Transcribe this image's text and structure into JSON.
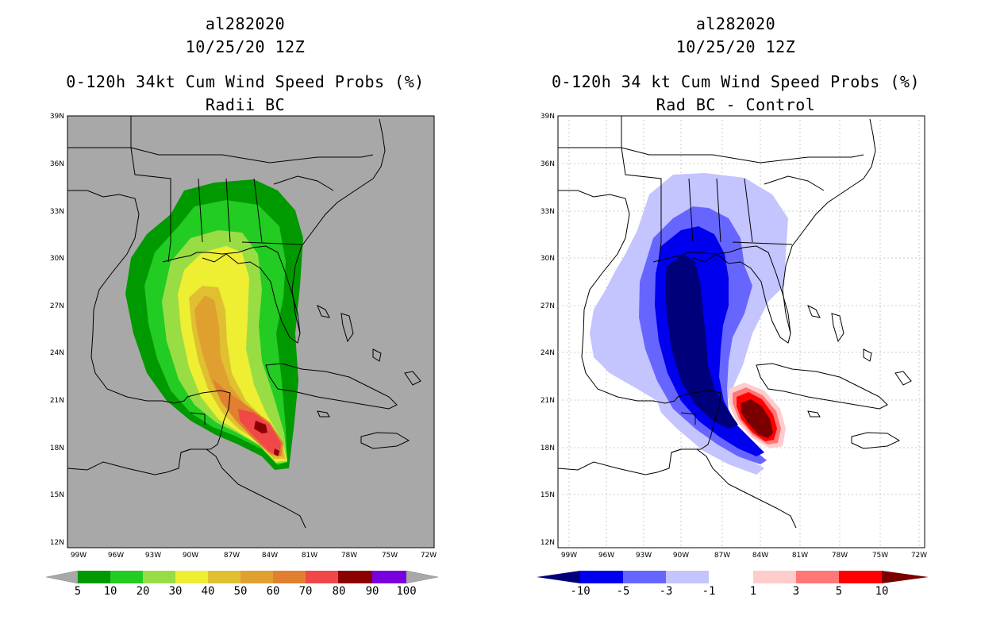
{
  "panels": [
    {
      "storm_id": "al282020",
      "datetime": "10/25/20 12Z",
      "product": "0-120h 34kt Cum Wind Speed Probs (%)",
      "subtitle": "Radii BC",
      "background": "#a8a8a8",
      "colorbar": {
        "colors": [
          "#009900",
          "#22cc22",
          "#99dd44",
          "#eeee33",
          "#e0c030",
          "#e0a030",
          "#e08030",
          "#f04848",
          "#8b0000",
          "#7700dd"
        ],
        "labels": [
          "5",
          "10",
          "20",
          "30",
          "40",
          "50",
          "60",
          "70",
          "80",
          "90",
          "100"
        ]
      }
    },
    {
      "storm_id": "al282020",
      "datetime": "10/25/20 12Z",
      "product": "0-120h 34 kt Cum Wind Speed Probs (%)",
      "subtitle": "Rad BC - Control",
      "background": "#ffffff",
      "colorbar": {
        "colors": [
          "#0000ee",
          "#6666ff",
          "#c4c4ff",
          "#ffffff",
          "#ffcccc",
          "#ff7777",
          "#ff0000"
        ],
        "end_colors": [
          "#00007a",
          "#7a0000"
        ],
        "labels": [
          "-10",
          "-5",
          "-3",
          "-1",
          "1",
          "3",
          "5",
          "10"
        ]
      }
    }
  ],
  "axes": {
    "lat_labels": [
      "39N",
      "36N",
      "33N",
      "30N",
      "27N",
      "24N",
      "21N",
      "18N",
      "15N",
      "12N"
    ],
    "lon_labels": [
      "99W",
      "96W",
      "93W",
      "90W",
      "87W",
      "84W",
      "81W",
      "78W",
      "75W",
      "72W"
    ]
  }
}
